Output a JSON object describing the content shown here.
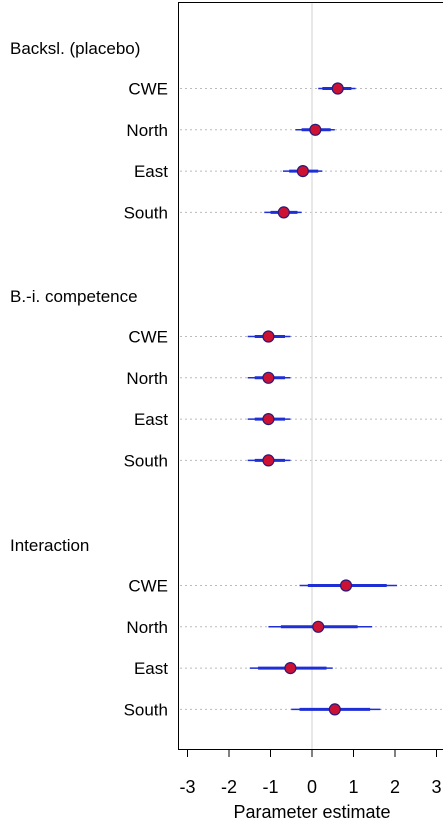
{
  "chart_data": {
    "type": "scatter",
    "title": "",
    "xlabel": "Parameter estimate",
    "ylabel": "",
    "xlim": [
      -3.2,
      3.2
    ],
    "x_ticks": [
      "-3",
      "-2",
      "-1",
      "0",
      "1",
      "2",
      "3"
    ],
    "x_tick_values": [
      -3,
      -2,
      -1,
      0,
      1,
      2,
      3
    ],
    "reference_line": 0,
    "grid": false,
    "colors": {
      "point_fill": "#cc1133",
      "point_edge": "#2a1a7a",
      "interval": "#1f2fd6",
      "row_guide": "#bbbbbb",
      "reference": "#d8d8d8"
    },
    "groups": [
      {
        "label": "Backsl. (placebo)",
        "rows": [
          {
            "label": "CWE",
            "estimate": 0.62,
            "ci_inner": [
              0.25,
              0.95
            ],
            "ci_outer": [
              0.15,
              1.05
            ]
          },
          {
            "label": "North",
            "estimate": 0.08,
            "ci_inner": [
              -0.25,
              0.45
            ],
            "ci_outer": [
              -0.4,
              0.55
            ]
          },
          {
            "label": "East",
            "estimate": -0.22,
            "ci_inner": [
              -0.55,
              0.15
            ],
            "ci_outer": [
              -0.7,
              0.25
            ]
          },
          {
            "label": "South",
            "estimate": -0.68,
            "ci_inner": [
              -1.0,
              -0.35
            ],
            "ci_outer": [
              -1.15,
              -0.25
            ]
          }
        ]
      },
      {
        "label": "B.-i. competence",
        "rows": [
          {
            "label": "CWE",
            "estimate": -1.05,
            "ci_inner": [
              -1.38,
              -0.65
            ],
            "ci_outer": [
              -1.55,
              -0.52
            ]
          },
          {
            "label": "North",
            "estimate": -1.05,
            "ci_inner": [
              -1.38,
              -0.65
            ],
            "ci_outer": [
              -1.55,
              -0.52
            ]
          },
          {
            "label": "East",
            "estimate": -1.05,
            "ci_inner": [
              -1.38,
              -0.65
            ],
            "ci_outer": [
              -1.55,
              -0.52
            ]
          },
          {
            "label": "South",
            "estimate": -1.05,
            "ci_inner": [
              -1.38,
              -0.65
            ],
            "ci_outer": [
              -1.55,
              -0.52
            ]
          }
        ]
      },
      {
        "label": "Interaction",
        "rows": [
          {
            "label": "CWE",
            "estimate": 0.82,
            "ci_inner": [
              -0.1,
              1.8
            ],
            "ci_outer": [
              -0.3,
              2.05
            ]
          },
          {
            "label": "North",
            "estimate": 0.15,
            "ci_inner": [
              -0.75,
              1.1
            ],
            "ci_outer": [
              -1.05,
              1.45
            ]
          },
          {
            "label": "East",
            "estimate": -0.52,
            "ci_inner": [
              -1.3,
              0.35
            ],
            "ci_outer": [
              -1.5,
              0.5
            ]
          },
          {
            "label": "South",
            "estimate": 0.55,
            "ci_inner": [
              -0.3,
              1.4
            ],
            "ci_outer": [
              -0.5,
              1.65
            ]
          }
        ]
      }
    ]
  }
}
